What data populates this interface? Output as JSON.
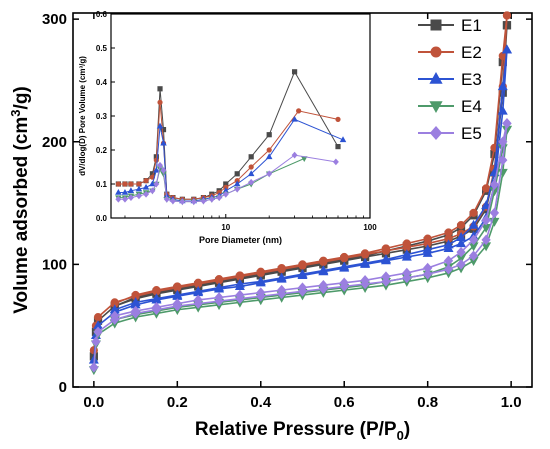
{
  "chart_data": [
    {
      "type": "line",
      "xlabel": "Relative Pressure (P/P",
      "xlabel_sub": "0",
      "xlabel_end": ")",
      "ylabel": "Volume adsorbed (cm",
      "ylabel_sup": "3",
      "ylabel_end": "/g)",
      "xlim": [
        -0.05,
        1.05
      ],
      "ylim": [
        0,
        305
      ],
      "xticks": [
        0.0,
        0.2,
        0.4,
        0.6,
        0.8,
        1.0
      ],
      "xtick_labels": [
        "0.0",
        "0.2",
        "0.4",
        "0.6",
        "0.8",
        "1.0"
      ],
      "yticks": [
        0,
        100,
        200,
        300
      ],
      "ytick_labels": [
        "0",
        "100",
        "200",
        "300"
      ],
      "legend_position": "top-right",
      "series": [
        {
          "name": "E1",
          "color": "#4a4a4a",
          "marker": "square",
          "x": [
            0.0,
            0.005,
            0.01,
            0.05,
            0.1,
            0.15,
            0.2,
            0.25,
            0.3,
            0.35,
            0.4,
            0.45,
            0.5,
            0.55,
            0.6,
            0.65,
            0.7,
            0.75,
            0.8,
            0.85,
            0.88,
            0.91,
            0.94,
            0.96,
            0.98,
            0.99,
            0.99,
            0.98,
            0.96,
            0.94,
            0.91,
            0.88,
            0.85,
            0.8,
            0.75,
            0.7,
            0.65,
            0.6,
            0.55,
            0.5,
            0.45,
            0.4,
            0.35,
            0.3,
            0.25,
            0.2,
            0.15,
            0.1,
            0.05
          ],
          "y": [
            25,
            45,
            54,
            66,
            72,
            76,
            79,
            82,
            85,
            88,
            91,
            94,
            97,
            100,
            103,
            106,
            109,
            112,
            115,
            119,
            123,
            129,
            145,
            175,
            240,
            295,
            295,
            265,
            190,
            160,
            140,
            130,
            124,
            119,
            115,
            111,
            107,
            104,
            101,
            98,
            95,
            92,
            89,
            86,
            83,
            80,
            77,
            73,
            66
          ]
        },
        {
          "name": "E2",
          "color": "#c0533a",
          "marker": "circle",
          "x": [
            0.0,
            0.005,
            0.01,
            0.05,
            0.1,
            0.15,
            0.2,
            0.25,
            0.3,
            0.35,
            0.4,
            0.45,
            0.5,
            0.55,
            0.6,
            0.65,
            0.7,
            0.75,
            0.8,
            0.85,
            0.88,
            0.91,
            0.94,
            0.96,
            0.98,
            0.99,
            0.99,
            0.98,
            0.96,
            0.94,
            0.91,
            0.88,
            0.85,
            0.8,
            0.75,
            0.7,
            0.65,
            0.6,
            0.55,
            0.5,
            0.45,
            0.4,
            0.35,
            0.3,
            0.25,
            0.2,
            0.15,
            0.1,
            0.05
          ],
          "y": [
            30,
            50,
            57,
            69,
            74,
            78,
            81,
            84,
            87,
            90,
            93,
            96,
            99,
            102,
            105,
            108,
            111,
            114,
            117,
            121,
            125,
            131,
            147,
            178,
            245,
            303,
            303,
            270,
            195,
            162,
            142,
            132,
            126,
            121,
            117,
            113,
            109,
            106,
            103,
            100,
            97,
            94,
            91,
            88,
            85,
            82,
            79,
            75,
            68
          ]
        },
        {
          "name": "E3",
          "color": "#2c53d3",
          "marker": "triangle-up",
          "x": [
            0.0,
            0.005,
            0.01,
            0.05,
            0.1,
            0.15,
            0.2,
            0.25,
            0.3,
            0.35,
            0.4,
            0.45,
            0.5,
            0.55,
            0.6,
            0.65,
            0.7,
            0.75,
            0.8,
            0.85,
            0.88,
            0.91,
            0.94,
            0.96,
            0.98,
            0.99,
            0.99,
            0.98,
            0.96,
            0.94,
            0.91,
            0.88,
            0.85,
            0.8,
            0.75,
            0.7,
            0.65,
            0.6,
            0.55,
            0.5,
            0.45,
            0.4,
            0.35,
            0.3,
            0.25,
            0.2,
            0.15,
            0.1,
            0.05
          ],
          "y": [
            22,
            42,
            50,
            61,
            67,
            71,
            74,
            77,
            80,
            82,
            85,
            88,
            91,
            94,
            97,
            100,
            103,
            106,
            109,
            113,
            117,
            123,
            138,
            165,
            225,
            275,
            275,
            245,
            175,
            148,
            132,
            122,
            116,
            112,
            108,
            104,
            101,
            98,
            95,
            92,
            89,
            86,
            84,
            81,
            78,
            75,
            72,
            69,
            63
          ]
        },
        {
          "name": "E4",
          "color": "#4e9a6a",
          "marker": "triangle-down",
          "x": [
            0.0,
            0.005,
            0.01,
            0.05,
            0.1,
            0.15,
            0.2,
            0.25,
            0.3,
            0.35,
            0.4,
            0.45,
            0.5,
            0.55,
            0.6,
            0.65,
            0.7,
            0.75,
            0.8,
            0.85,
            0.88,
            0.91,
            0.94,
            0.96,
            0.98,
            0.99,
            0.99,
            0.98,
            0.96,
            0.94,
            0.91,
            0.88,
            0.85,
            0.8,
            0.75,
            0.7,
            0.65,
            0.6,
            0.55,
            0.5,
            0.45,
            0.4,
            0.35,
            0.3,
            0.25,
            0.2,
            0.15,
            0.1,
            0.05
          ],
          "y": [
            14,
            35,
            43,
            52,
            57,
            60,
            63,
            65,
            67,
            69,
            71,
            73,
            75,
            77,
            79,
            81,
            83,
            86,
            89,
            93,
            97,
            103,
            115,
            135,
            175,
            210,
            210,
            195,
            160,
            130,
            115,
            105,
            98,
            92,
            89,
            86,
            83,
            81,
            79,
            77,
            75,
            73,
            71,
            69,
            67,
            65,
            62,
            59,
            55
          ]
        },
        {
          "name": "E5",
          "color": "#9b7fe0",
          "marker": "diamond",
          "x": [
            0.0,
            0.005,
            0.01,
            0.05,
            0.1,
            0.15,
            0.2,
            0.25,
            0.3,
            0.35,
            0.4,
            0.45,
            0.5,
            0.55,
            0.6,
            0.65,
            0.7,
            0.75,
            0.8,
            0.85,
            0.88,
            0.91,
            0.94,
            0.96,
            0.98,
            0.99,
            0.99,
            0.98,
            0.96,
            0.94,
            0.91,
            0.88,
            0.85,
            0.8,
            0.75,
            0.7,
            0.65,
            0.6,
            0.55,
            0.5,
            0.45,
            0.4,
            0.35,
            0.3,
            0.25,
            0.2,
            0.15,
            0.1,
            0.05
          ],
          "y": [
            16,
            37,
            45,
            55,
            60,
            63,
            66,
            68,
            70,
            72,
            74,
            76,
            78,
            80,
            82,
            84,
            86,
            89,
            92,
            96,
            100,
            107,
            120,
            142,
            185,
            215,
            215,
            200,
            165,
            136,
            120,
            110,
            103,
            97,
            93,
            90,
            87,
            85,
            83,
            81,
            79,
            77,
            75,
            73,
            71,
            68,
            65,
            62,
            58
          ]
        }
      ]
    },
    {
      "type": "line",
      "xlabel": "Pore Diameter (nm)",
      "ylabel": "dV/dlog(D) Pore Volume (cm³/g)",
      "xscale": "log",
      "xlim": [
        1.6,
        100
      ],
      "ylim": [
        0,
        0.6
      ],
      "xticks": [
        10,
        100
      ],
      "xtick_labels": [
        "10",
        "100"
      ],
      "yticks": [
        0.0,
        0.1,
        0.2,
        0.3,
        0.4,
        0.5,
        0.6
      ],
      "ytick_labels": [
        "0.0",
        "0.1",
        "0.2",
        "0.3",
        "0.4",
        "0.5",
        "0.6"
      ],
      "series": [
        {
          "name": "E1",
          "color": "#4a4a4a",
          "marker": "square",
          "x": [
            1.8,
            2.0,
            2.2,
            2.5,
            2.8,
            3.1,
            3.3,
            3.5,
            3.7,
            3.9,
            4.3,
            5,
            6,
            7,
            8,
            9,
            10,
            12,
            15,
            20,
            30,
            60
          ],
          "y": [
            0.1,
            0.1,
            0.1,
            0.1,
            0.11,
            0.13,
            0.18,
            0.38,
            0.26,
            0.07,
            0.06,
            0.055,
            0.055,
            0.06,
            0.07,
            0.08,
            0.1,
            0.13,
            0.18,
            0.245,
            0.43,
            0.21
          ]
        },
        {
          "name": "E2",
          "color": "#c0533a",
          "marker": "circle",
          "x": [
            1.8,
            2.0,
            2.2,
            2.5,
            2.8,
            3.1,
            3.3,
            3.5,
            3.7,
            3.9,
            4.3,
            5,
            6,
            7,
            8,
            9,
            10,
            12,
            15,
            20,
            32,
            60
          ],
          "y": [
            0.1,
            0.1,
            0.1,
            0.1,
            0.11,
            0.12,
            0.17,
            0.34,
            0.22,
            0.07,
            0.06,
            0.055,
            0.055,
            0.06,
            0.065,
            0.075,
            0.09,
            0.11,
            0.15,
            0.2,
            0.315,
            0.29
          ]
        },
        {
          "name": "E3",
          "color": "#2c53d3",
          "marker": "triangle-up",
          "x": [
            1.8,
            2.0,
            2.2,
            2.5,
            2.8,
            3.1,
            3.3,
            3.5,
            3.7,
            3.9,
            4.3,
            5,
            6,
            7,
            8,
            9,
            10,
            12,
            15,
            20,
            30,
            65
          ],
          "y": [
            0.075,
            0.075,
            0.08,
            0.085,
            0.09,
            0.1,
            0.14,
            0.27,
            0.22,
            0.065,
            0.055,
            0.05,
            0.05,
            0.055,
            0.06,
            0.065,
            0.08,
            0.1,
            0.13,
            0.18,
            0.29,
            0.23
          ]
        },
        {
          "name": "E4",
          "color": "#4e9a6a",
          "marker": "triangle-down",
          "x": [
            1.8,
            2.0,
            2.2,
            2.5,
            2.8,
            3.1,
            3.3,
            3.5,
            3.7,
            3.9,
            4.3,
            5,
            6,
            7,
            8,
            9,
            10,
            12,
            15,
            20,
            35
          ],
          "y": [
            0.06,
            0.06,
            0.065,
            0.07,
            0.075,
            0.08,
            0.1,
            0.145,
            0.13,
            0.055,
            0.05,
            0.048,
            0.048,
            0.05,
            0.055,
            0.06,
            0.07,
            0.085,
            0.1,
            0.13,
            0.175
          ]
        },
        {
          "name": "E5",
          "color": "#9b7fe0",
          "marker": "diamond",
          "x": [
            1.8,
            2.0,
            2.2,
            2.5,
            2.8,
            3.1,
            3.3,
            3.5,
            3.7,
            3.9,
            4.3,
            5,
            6,
            7,
            8,
            9,
            10,
            12,
            15,
            20,
            30,
            58
          ],
          "y": [
            0.055,
            0.055,
            0.06,
            0.065,
            0.07,
            0.08,
            0.1,
            0.155,
            0.14,
            0.055,
            0.05,
            0.048,
            0.048,
            0.05,
            0.055,
            0.06,
            0.07,
            0.085,
            0.105,
            0.13,
            0.185,
            0.165
          ]
        }
      ]
    }
  ]
}
